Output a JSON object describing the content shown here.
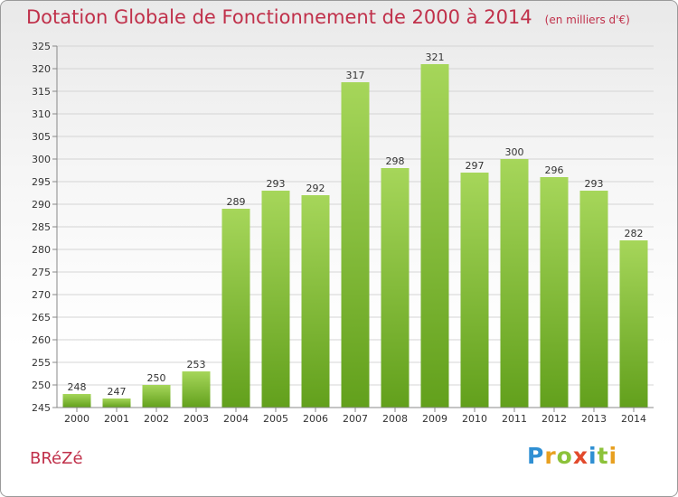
{
  "header": {
    "title": "Dotation Globale de Fonctionnement de 2000 à 2014",
    "unit": "(en milliers d'€)"
  },
  "commune": "BRéZé",
  "logo": {
    "letters": [
      "P",
      "r",
      "o",
      "x",
      "i",
      "t",
      "i"
    ],
    "colors": [
      "#2f8fd3",
      "#e8a020",
      "#8cc23a",
      "#e24a2c",
      "#2f8fd3",
      "#8cc23a",
      "#e8a020"
    ]
  },
  "colors": {
    "bar_light": "#a6d65a",
    "bar_dark": "#62a01c",
    "title": "#c0304a"
  },
  "chart_data": {
    "type": "bar",
    "title": "Dotation Globale de Fonctionnement de 2000 à 2014",
    "subtitle": "(en milliers d'€)",
    "categories": [
      "2000",
      "2001",
      "2002",
      "2003",
      "2004",
      "2005",
      "2006",
      "2007",
      "2008",
      "2009",
      "2010",
      "2011",
      "2012",
      "2013",
      "2014"
    ],
    "values": [
      248,
      247,
      250,
      253,
      289,
      293,
      292,
      317,
      298,
      321,
      297,
      300,
      296,
      293,
      282
    ],
    "ylim": [
      245,
      325
    ],
    "yticks": [
      245,
      250,
      255,
      260,
      265,
      270,
      275,
      280,
      285,
      290,
      295,
      300,
      305,
      310,
      315,
      320,
      325
    ],
    "grid": true,
    "legend": "none"
  }
}
